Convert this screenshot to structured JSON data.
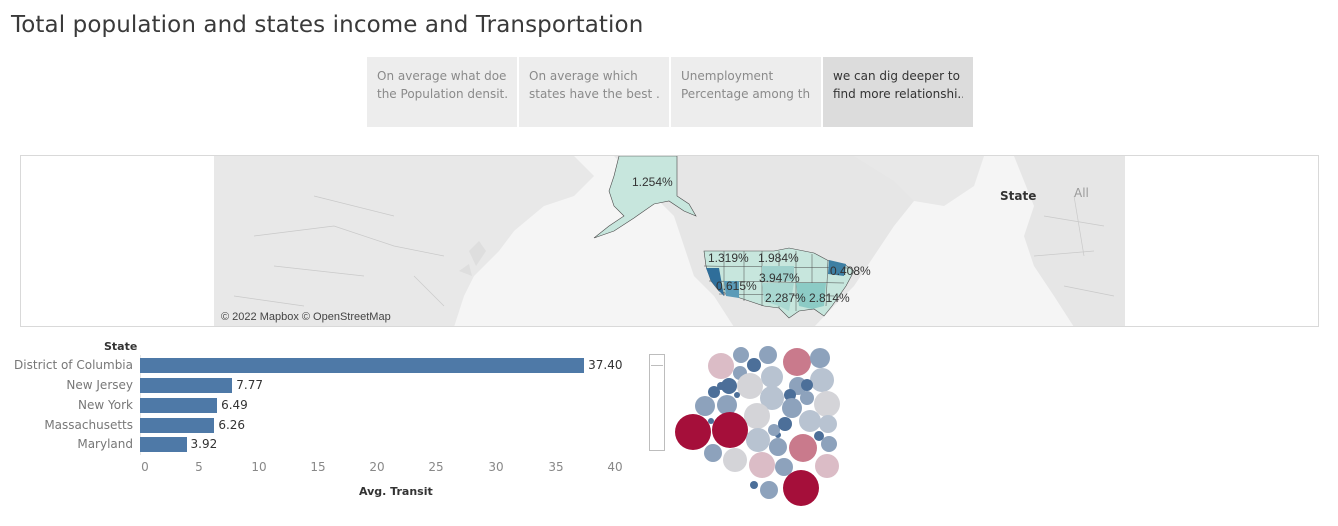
{
  "title": "Total population and states income and Transportation",
  "story_points": [
    {
      "line1": "On average what does",
      "line2": "the Population densit..",
      "active": false
    },
    {
      "line1": "On average which",
      "line2": "states have the  best ..",
      "active": false
    },
    {
      "line1": "Unemployment",
      "line2": "Percentage among th..",
      "active": false
    },
    {
      "line1": "we can dig deeper to",
      "line2": "find more relationshi..",
      "active": true
    }
  ],
  "map": {
    "credit": "© 2022 Mapbox © OpenStreetMap",
    "legend_title": "State",
    "legend_value": "All",
    "labels": [
      "1.254%",
      "1.319%",
      "1.984%",
      "3.947%",
      "0.408%",
      "0.615%",
      "2.287%",
      "2.814%"
    ],
    "colors": {
      "light": "#c7e6dd",
      "mid": "#8ccbc5",
      "dark": "#2f6e9a",
      "state_outline": "#4a4a4a",
      "land": "#e6e6e6",
      "water": "#f5f5f5"
    }
  },
  "bar_chart": {
    "header": "State",
    "axis_title": "Avg. Transit",
    "ticks": [
      "0",
      "5",
      "10",
      "15",
      "20",
      "25",
      "30",
      "35",
      "40"
    ],
    "bar_color": "#4e79a7"
  },
  "chart_data": {
    "type": "bar",
    "orientation": "horizontal",
    "categories": [
      "District of Columbia",
      "New Jersey",
      "New York",
      "Massachusetts",
      "Maryland"
    ],
    "values": [
      37.4,
      7.77,
      6.49,
      6.26,
      3.92
    ],
    "value_labels": [
      "37.40",
      "7.77",
      "6.49",
      "6.26",
      "3.92"
    ],
    "xlabel": "Avg. Transit",
    "ylabel": "State",
    "xlim": [
      0,
      40
    ]
  },
  "bubbles": {
    "colors": {
      "crimson": "#a50f3a",
      "rose": "#c97a8c",
      "pink": "#dbbcc6",
      "grey": "#d4d4d8",
      "lightblue": "#b8c3d1",
      "blue": "#8da2bc",
      "darkblue": "#4c6f99"
    }
  }
}
